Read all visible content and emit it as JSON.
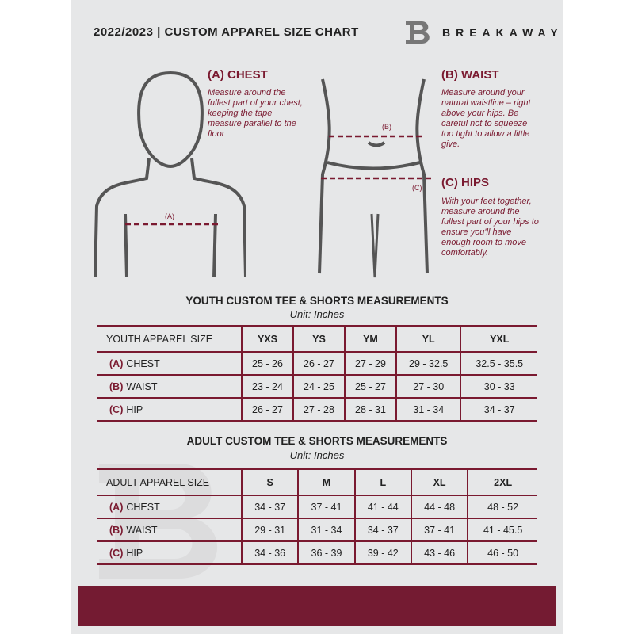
{
  "header": {
    "title": "2022/2023  |  CUSTOM APPAREL SIZE CHART",
    "brand": "BREAKAWAY",
    "logo_letter": "B"
  },
  "chest": {
    "label": "(A) CHEST",
    "text": "Measure around the fullest part of your chest, keeping the tape measure parallel to the floor",
    "marker": "(A)"
  },
  "waist": {
    "label": "(B) WAIST",
    "text": "Measure around your natural waistline – right above your hips. Be careful not to squeeze too tight to allow a little give.",
    "marker": "(B)"
  },
  "hips": {
    "label": "(C) HIPS",
    "text": "With your feet together, measure around the fullest part of your hips to ensure you'll have enough room to move comfortably.",
    "marker": "(C)"
  },
  "colors": {
    "accent": "#7a1a30",
    "background": "#e6e7e8",
    "band": "#741b32"
  },
  "youth": {
    "title": "YOUTH CUSTOM TEE & SHORTS MEASUREMENTS",
    "unit": "Unit: Inches",
    "header": [
      "YOUTH APPAREL SIZE",
      "YXS",
      "YS",
      "YM",
      "YL",
      "YXL"
    ],
    "rows": [
      {
        "letter": "(A)",
        "name": "CHEST",
        "values": [
          "25 - 26",
          "26 - 27",
          "27 - 29",
          "29 - 32.5",
          "32.5 - 35.5"
        ]
      },
      {
        "letter": "(B)",
        "name": "WAIST",
        "values": [
          "23 - 24",
          "24 - 25",
          "25 - 27",
          "27 - 30",
          "30 - 33"
        ]
      },
      {
        "letter": "(C)",
        "name": "HIP",
        "values": [
          "26 - 27",
          "27 - 28",
          "28 - 31",
          "31 - 34",
          "34 - 37"
        ]
      }
    ]
  },
  "adult": {
    "title": "ADULT CUSTOM TEE & SHORTS MEASUREMENTS",
    "unit": "Unit: Inches",
    "header": [
      "ADULT APPAREL SIZE",
      "S",
      "M",
      "L",
      "XL",
      "2XL"
    ],
    "rows": [
      {
        "letter": "(A)",
        "name": "CHEST",
        "values": [
          "34 - 37",
          "37 - 41",
          "41 - 44",
          "44 - 48",
          "48 - 52"
        ]
      },
      {
        "letter": "(B)",
        "name": "WAIST",
        "values": [
          "29 - 31",
          "31 - 34",
          "34 - 37",
          "37 - 41",
          "41 - 45.5"
        ]
      },
      {
        "letter": "(C)",
        "name": "HIP",
        "values": [
          "34 - 36",
          "36 - 39",
          "39 - 42",
          "43 - 46",
          "46 - 50"
        ]
      }
    ]
  }
}
